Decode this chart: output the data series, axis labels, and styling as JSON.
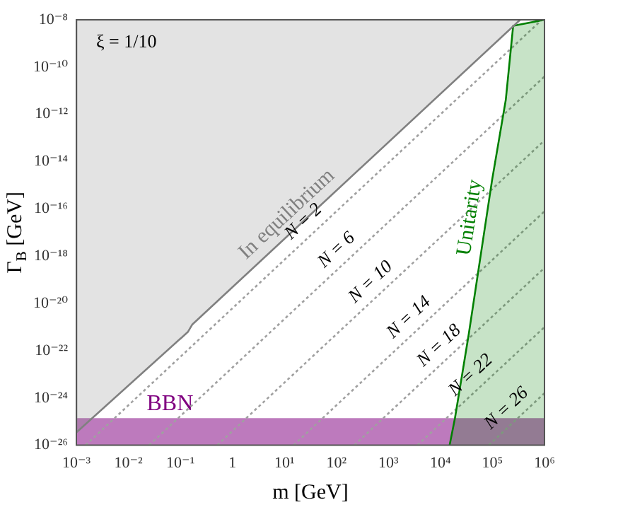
{
  "chart_data": {
    "type": "line",
    "xlabel": "m [GeV]",
    "ylabel": "Γ$_{B}$ [GeV]",
    "log": "xy",
    "grid": false,
    "legend": false,
    "marker": "none",
    "xlim": [
      0.001,
      1000000
    ],
    "ylim": [
      1e-26,
      1e-08
    ],
    "xticks": [
      {
        "value": 0.001,
        "label": "10⁻³"
      },
      {
        "value": 0.01,
        "label": "10⁻²"
      },
      {
        "value": 0.1,
        "label": "10⁻¹"
      },
      1,
      {
        "value": 10,
        "label": "10¹"
      },
      {
        "value": 100,
        "label": "10²"
      },
      {
        "value": 1000,
        "label": "10³"
      },
      {
        "value": 10000,
        "label": "10⁴"
      },
      {
        "value": 100000,
        "label": "10⁵"
      },
      {
        "value": 1000000,
        "label": "10⁶"
      }
    ],
    "yticks": [
      {
        "value": 1e-26,
        "label": "10⁻²⁶"
      },
      {
        "value": 1e-24,
        "label": "10⁻²⁴"
      },
      {
        "value": 1e-22,
        "label": "10⁻²²"
      },
      {
        "value": 1e-20,
        "label": "10⁻²⁰"
      },
      {
        "value": 1e-18,
        "label": "10⁻¹⁸"
      },
      {
        "value": 1e-16,
        "label": "10⁻¹⁶"
      },
      {
        "value": 1e-14,
        "label": "10⁻¹⁴"
      },
      {
        "value": 1e-12,
        "label": "10⁻¹²"
      },
      {
        "value": 1e-10,
        "label": "10⁻¹⁰"
      },
      {
        "value": 1e-08,
        "label": "10⁻⁸"
      }
    ],
    "annotations": [
      "ξ = 1/10"
    ],
    "bands": [
      {
        "axis": "y",
        "from": 1e-26,
        "to": 1.4e-25,
        "label": "BBN",
        "color": "#800080"
      }
    ],
    "series": [
      {
        "name": "In equilibrium",
        "type": "area",
        "color": "#808080",
        "line_style": "solid",
        "x": [
          0.001,
          0.001,
          0.14,
          0.17,
          340000
        ],
        "values": [
          1e-08,
          3.5e-26,
          6.3e-22,
          1.3e-21,
          1e-08
        ]
      },
      {
        "name": "Unitarity",
        "type": "area",
        "color": "#008000",
        "line_style": "solid",
        "x": [
          15000,
          19000,
          35000,
          98000,
          180000,
          250000,
          1000000
        ],
        "values": [
          1e-26,
          1.4e-25,
          5e-22,
          1.6e-15,
          4e-12,
          5.6e-09,
          1e-08
        ]
      },
      {
        "name": "N = 2",
        "color": "#a0a0a0",
        "line_style": "dotted",
        "x": [
          0.0015,
          890000
        ],
        "values": [
          1e-26,
          1e-08
        ]
      },
      {
        "name": "N = 6",
        "color": "#a0a0a0",
        "line_style": "dotted",
        "x": [
          0.025,
          1000000
        ],
        "values": [
          1e-26,
          4e-11
        ]
      },
      {
        "name": "N = 10",
        "color": "#a0a0a0",
        "line_style": "dotted",
        "x": [
          0.51,
          1000000
        ],
        "values": [
          1e-26,
          7.9e-14
        ]
      },
      {
        "name": "N = 14",
        "color": "#a0a0a0",
        "line_style": "dotted",
        "x": [
          15,
          1000000
        ],
        "values": [
          1e-26,
          7.9e-17
        ]
      },
      {
        "name": "N = 18",
        "color": "#a0a0a0",
        "line_style": "dotted",
        "x": [
          220,
          1000000
        ],
        "values": [
          1e-26,
          3.2e-19
        ]
      },
      {
        "name": "N = 22",
        "color": "#a0a0a0",
        "line_style": "dotted",
        "x": [
          3600,
          1000000
        ],
        "values": [
          1e-26,
          1e-21
        ]
      },
      {
        "name": "N = 26",
        "color": "#a0a0a0",
        "line_style": "dotted",
        "x": [
          85000,
          1000000
        ],
        "values": [
          1e-26,
          1.6e-24
        ]
      }
    ]
  }
}
